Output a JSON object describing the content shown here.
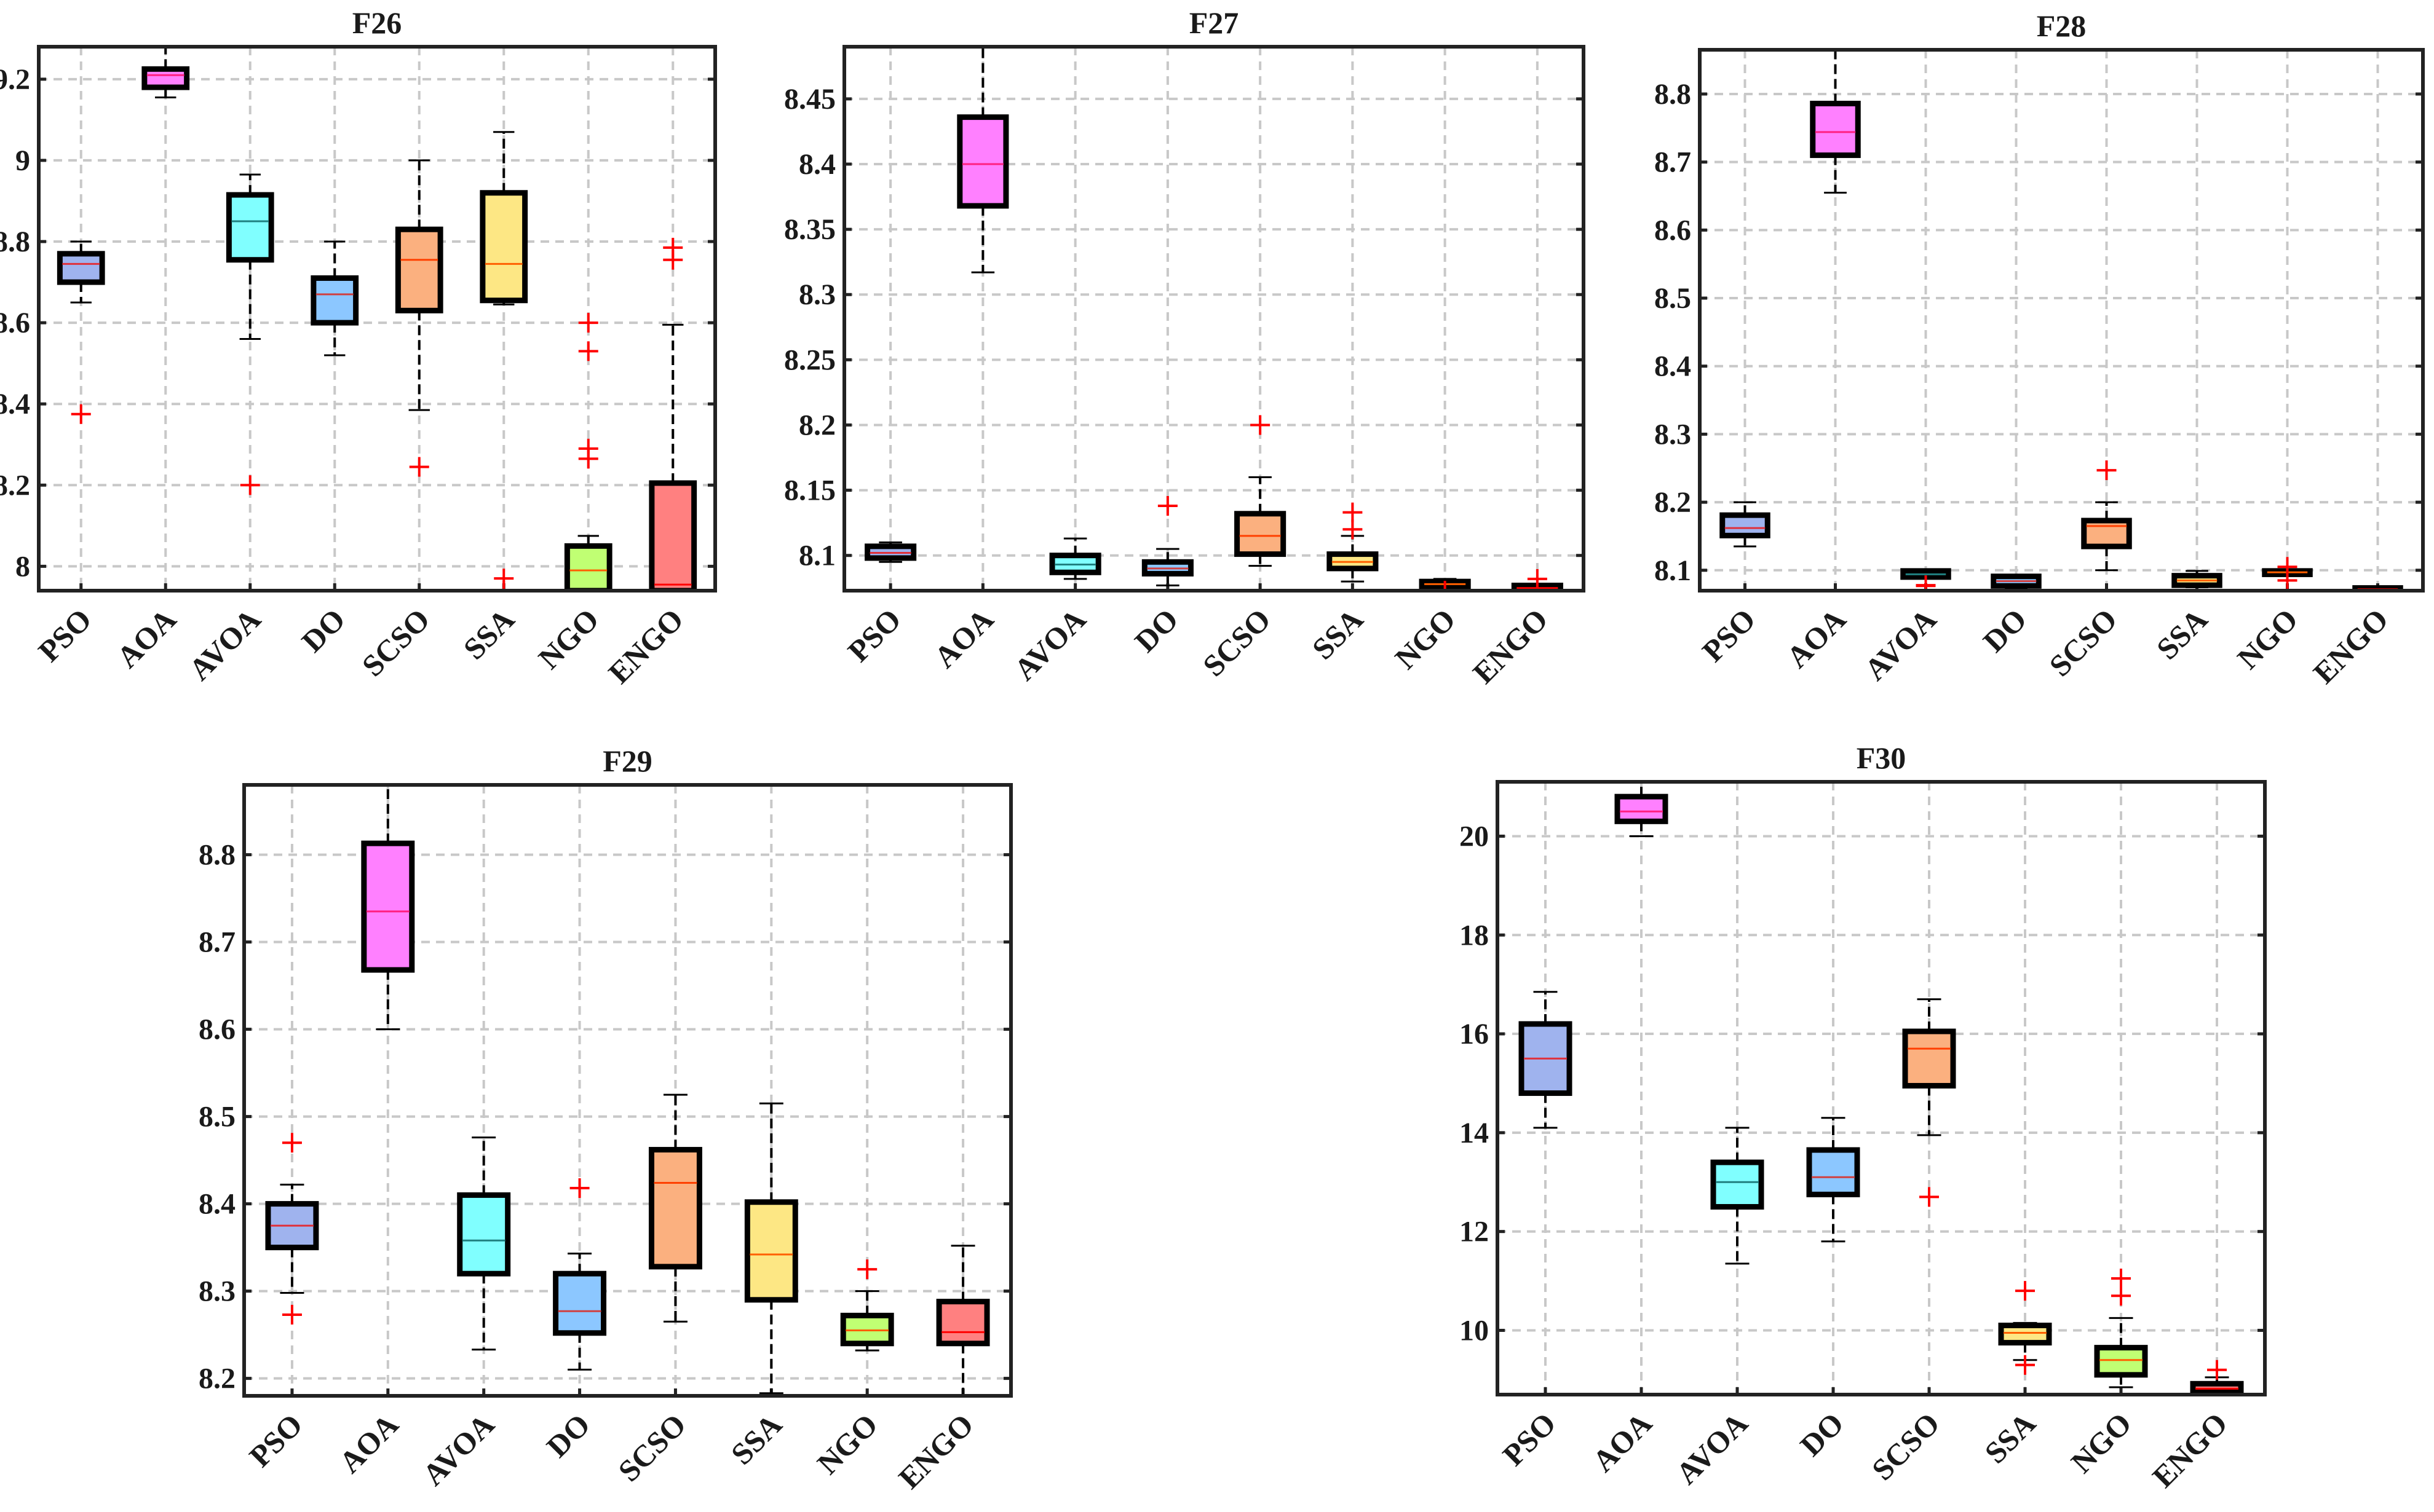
{
  "algorithms_colors": {
    "PSO": "#9fb3ee",
    "AOA": "#ff80ff",
    "AVOA": "#80ffff",
    "DO": "#8cc7ff",
    "SCSO": "#fbb07f",
    "SSA": "#fde784",
    "NGO": "#c0ff73",
    "ENGO": "#ff8080"
  },
  "chart_data": [
    {
      "type": "boxplot",
      "title": "F26",
      "xlabel": "",
      "ylabel": "",
      "categories": [
        "PSO",
        "AOA",
        "AVOA",
        "DO",
        "SCSO",
        "SSA",
        "NGO",
        "ENGO"
      ],
      "ylim": [
        7.94,
        9.28
      ],
      "yticks": [
        8,
        8.2,
        8.4,
        8.6,
        8.8,
        9,
        9.2
      ],
      "grid": true,
      "boxes": [
        {
          "q1": 8.7,
          "median": 8.745,
          "q3": 8.77,
          "whisker_low": 8.65,
          "whisker_high": 8.8,
          "outliers": [
            8.375
          ]
        },
        {
          "q1": 9.18,
          "median": 9.21,
          "q3": 9.225,
          "whisker_low": 9.155,
          "whisker_high": 9.28,
          "outliers": []
        },
        {
          "q1": 8.755,
          "median": 8.85,
          "q3": 8.915,
          "whisker_low": 8.56,
          "whisker_high": 8.965,
          "outliers": [
            8.2
          ]
        },
        {
          "q1": 8.6,
          "median": 8.67,
          "q3": 8.71,
          "whisker_low": 8.52,
          "whisker_high": 8.8,
          "outliers": []
        },
        {
          "q1": 8.63,
          "median": 8.755,
          "q3": 8.83,
          "whisker_low": 8.385,
          "whisker_high": 9.0,
          "outliers": [
            8.245
          ]
        },
        {
          "q1": 8.655,
          "median": 8.745,
          "q3": 8.92,
          "whisker_low": 8.645,
          "whisker_high": 9.07,
          "outliers": [
            7.97,
            7.94
          ]
        },
        {
          "q1": 7.94,
          "median": 7.99,
          "q3": 8.05,
          "whisker_low": 7.94,
          "whisker_high": 8.075,
          "outliers": [
            8.6,
            8.53,
            8.29,
            8.265
          ]
        },
        {
          "q1": 7.94,
          "median": 7.955,
          "q3": 8.205,
          "whisker_low": 7.94,
          "whisker_high": 8.595,
          "outliers": [
            8.785,
            8.755
          ]
        }
      ]
    },
    {
      "type": "boxplot",
      "title": "F27",
      "xlabel": "",
      "ylabel": "",
      "categories": [
        "PSO",
        "AOA",
        "AVOA",
        "DO",
        "SCSO",
        "SSA",
        "NGO",
        "ENGO"
      ],
      "ylim": [
        8.073,
        8.49
      ],
      "yticks": [
        8.1,
        8.15,
        8.2,
        8.25,
        8.3,
        8.35,
        8.4,
        8.45
      ],
      "grid": true,
      "boxes": [
        {
          "q1": 8.098,
          "median": 8.102,
          "q3": 8.107,
          "whisker_low": 8.095,
          "whisker_high": 8.11,
          "outliers": []
        },
        {
          "q1": 8.368,
          "median": 8.4,
          "q3": 8.436,
          "whisker_low": 8.317,
          "whisker_high": 8.49,
          "outliers": []
        },
        {
          "q1": 8.087,
          "median": 8.093,
          "q3": 8.1,
          "whisker_low": 8.082,
          "whisker_high": 8.113,
          "outliers": []
        },
        {
          "q1": 8.086,
          "median": 8.09,
          "q3": 8.095,
          "whisker_low": 8.077,
          "whisker_high": 8.105,
          "outliers": [
            8.138
          ]
        },
        {
          "q1": 8.101,
          "median": 8.115,
          "q3": 8.132,
          "whisker_low": 8.092,
          "whisker_high": 8.16,
          "outliers": [
            8.2
          ]
        },
        {
          "q1": 8.09,
          "median": 8.095,
          "q3": 8.101,
          "whisker_low": 8.08,
          "whisker_high": 8.115,
          "outliers": [
            8.133,
            8.12
          ]
        },
        {
          "q1": 8.076,
          "median": 8.078,
          "q3": 8.08,
          "whisker_low": 8.074,
          "whisker_high": 8.082,
          "outliers": [
            8.073
          ]
        },
        {
          "q1": 8.074,
          "median": 8.075,
          "q3": 8.077,
          "whisker_low": 8.073,
          "whisker_high": 8.078,
          "outliers": [
            8.082
          ]
        }
      ]
    },
    {
      "type": "boxplot",
      "title": "F28",
      "xlabel": "",
      "ylabel": "",
      "categories": [
        "PSO",
        "AOA",
        "AVOA",
        "DO",
        "SCSO",
        "SSA",
        "NGO",
        "ENGO"
      ],
      "ylim": [
        8.07,
        8.865
      ],
      "yticks": [
        8.1,
        8.2,
        8.3,
        8.4,
        8.5,
        8.6,
        8.7,
        8.8
      ],
      "grid": true,
      "boxes": [
        {
          "q1": 8.151,
          "median": 8.162,
          "q3": 8.181,
          "whisker_low": 8.135,
          "whisker_high": 8.2,
          "outliers": []
        },
        {
          "q1": 8.71,
          "median": 8.744,
          "q3": 8.786,
          "whisker_low": 8.655,
          "whisker_high": 8.865,
          "outliers": []
        },
        {
          "q1": 8.09,
          "median": 8.094,
          "q3": 8.099,
          "whisker_low": 8.088,
          "whisker_high": 8.101,
          "outliers": [
            8.078,
            8.077
          ]
        },
        {
          "q1": 8.077,
          "median": 8.084,
          "q3": 8.091,
          "whisker_low": 8.072,
          "whisker_high": 8.093,
          "outliers": []
        },
        {
          "q1": 8.135,
          "median": 8.165,
          "q3": 8.173,
          "whisker_low": 8.1,
          "whisker_high": 8.2,
          "outliers": [
            8.247
          ]
        },
        {
          "q1": 8.078,
          "median": 8.085,
          "q3": 8.092,
          "whisker_low": 8.075,
          "whisker_high": 8.099,
          "outliers": []
        },
        {
          "q1": 8.094,
          "median": 8.097,
          "q3": 8.099,
          "whisker_low": 8.092,
          "whisker_high": 8.101,
          "outliers": [
            8.105,
            8.085
          ]
        },
        {
          "q1": 8.071,
          "median": 8.072,
          "q3": 8.074,
          "whisker_low": 8.07,
          "whisker_high": 8.076,
          "outliers": []
        }
      ]
    },
    {
      "type": "boxplot",
      "title": "F29",
      "xlabel": "",
      "ylabel": "",
      "categories": [
        "PSO",
        "AOA",
        "AVOA",
        "DO",
        "SCSO",
        "SSA",
        "NGO",
        "ENGO"
      ],
      "ylim": [
        8.18,
        8.88
      ],
      "yticks": [
        8.2,
        8.3,
        8.4,
        8.5,
        8.6,
        8.7,
        8.8
      ],
      "grid": true,
      "boxes": [
        {
          "q1": 8.35,
          "median": 8.375,
          "q3": 8.4,
          "whisker_low": 8.298,
          "whisker_high": 8.422,
          "outliers": [
            8.47,
            8.273
          ]
        },
        {
          "q1": 8.668,
          "median": 8.735,
          "q3": 8.813,
          "whisker_low": 8.6,
          "whisker_high": 8.88,
          "outliers": []
        },
        {
          "q1": 8.32,
          "median": 8.358,
          "q3": 8.41,
          "whisker_low": 8.233,
          "whisker_high": 8.476,
          "outliers": []
        },
        {
          "q1": 8.252,
          "median": 8.277,
          "q3": 8.32,
          "whisker_low": 8.21,
          "whisker_high": 8.343,
          "outliers": [
            8.418
          ]
        },
        {
          "q1": 8.328,
          "median": 8.424,
          "q3": 8.462,
          "whisker_low": 8.265,
          "whisker_high": 8.525,
          "outliers": []
        },
        {
          "q1": 8.29,
          "median": 8.342,
          "q3": 8.402,
          "whisker_low": 8.183,
          "whisker_high": 8.515,
          "outliers": []
        },
        {
          "q1": 8.24,
          "median": 8.255,
          "q3": 8.272,
          "whisker_low": 8.232,
          "whisker_high": 8.3,
          "outliers": [
            8.325
          ]
        },
        {
          "q1": 8.24,
          "median": 8.253,
          "q3": 8.288,
          "whisker_low": 8.18,
          "whisker_high": 8.352,
          "outliers": []
        }
      ]
    },
    {
      "type": "boxplot",
      "title": "F30",
      "xlabel": "",
      "ylabel": "",
      "categories": [
        "PSO",
        "AOA",
        "AVOA",
        "DO",
        "SCSO",
        "SSA",
        "NGO",
        "ENGO"
      ],
      "ylim": [
        8.7,
        21.1
      ],
      "yticks": [
        10,
        12,
        14,
        16,
        18,
        20
      ],
      "grid": true,
      "boxes": [
        {
          "q1": 14.8,
          "median": 15.5,
          "q3": 16.2,
          "whisker_low": 14.1,
          "whisker_high": 16.85,
          "outliers": []
        },
        {
          "q1": 20.3,
          "median": 20.5,
          "q3": 20.8,
          "whisker_low": 20.0,
          "whisker_high": 21.1,
          "outliers": []
        },
        {
          "q1": 12.5,
          "median": 13.0,
          "q3": 13.4,
          "whisker_low": 11.35,
          "whisker_high": 14.1,
          "outliers": []
        },
        {
          "q1": 12.75,
          "median": 13.1,
          "q3": 13.65,
          "whisker_low": 11.8,
          "whisker_high": 14.3,
          "outliers": []
        },
        {
          "q1": 14.95,
          "median": 15.7,
          "q3": 16.05,
          "whisker_low": 13.95,
          "whisker_high": 16.7,
          "outliers": [
            12.7
          ]
        },
        {
          "q1": 9.75,
          "median": 9.95,
          "q3": 10.1,
          "whisker_low": 9.4,
          "whisker_high": 10.15,
          "outliers": [
            10.8,
            9.3
          ]
        },
        {
          "q1": 9.1,
          "median": 9.4,
          "q3": 9.65,
          "whisker_low": 8.85,
          "whisker_high": 10.25,
          "outliers": [
            11.05,
            10.7
          ]
        },
        {
          "q1": 8.75,
          "median": 8.82,
          "q3": 8.92,
          "whisker_low": 8.7,
          "whisker_high": 9.05,
          "outliers": [
            9.2
          ]
        }
      ]
    }
  ]
}
